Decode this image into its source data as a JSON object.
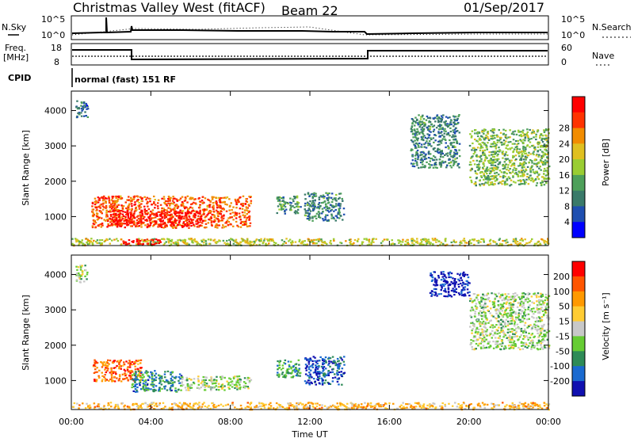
{
  "header": {
    "station": "Christmas Valley West (fitACF)",
    "beam": "Beam 22",
    "date": "01/Sep/2017"
  },
  "params": {
    "nsky_label": "N.Sky",
    "nsearch_label": "N.Search",
    "freq_label_1": "Freq.",
    "freq_label_2": "[MHz]",
    "nave_label": "Nave",
    "cpid_label": "CPID",
    "cpid_value": "normal (fast) 151 RF",
    "noise_ticks": [
      "10^5",
      "10^0"
    ],
    "freq_ticks": [
      "18",
      "8"
    ],
    "nave_ticks": [
      "60",
      "0"
    ]
  },
  "chart_data": [
    {
      "type": "heatmap",
      "title": "",
      "xlabel": "",
      "ylabel": "Slant Range [km]",
      "xlim": [
        0,
        24
      ],
      "ylim": [
        180,
        4550
      ],
      "xticks": [
        "00:00",
        "04:00",
        "08:00",
        "12:00",
        "16:00",
        "20:00",
        "00:00"
      ],
      "yticks": [
        1000,
        2000,
        3000,
        4000
      ],
      "colorbar": {
        "label": "Power [dB]",
        "ticks": [
          "4",
          "8",
          "12",
          "16",
          "20",
          "24",
          "28"
        ],
        "colors": [
          "#0000ff",
          "#1f4fb0",
          "#3a7a6a",
          "#4ea05a",
          "#9acd32",
          "#e0c020",
          "#f28c00",
          "#ff3300",
          "#ff0000"
        ]
      },
      "regions": [
        {
          "t": [
            0.2,
            0.8
          ],
          "r": [
            3800,
            4300
          ],
          "level": 0.25
        },
        {
          "t": [
            1.0,
            9.0
          ],
          "r": [
            700,
            1600
          ],
          "level": 0.8
        },
        {
          "t": [
            2.0,
            6.5
          ],
          "r": [
            750,
            1200
          ],
          "level": 0.95
        },
        {
          "t": [
            10.3,
            11.5
          ],
          "r": [
            1100,
            1600
          ],
          "level": 0.35
        },
        {
          "t": [
            11.7,
            13.7
          ],
          "r": [
            900,
            1700
          ],
          "level": 0.3
        },
        {
          "t": [
            17.0,
            19.5
          ],
          "r": [
            2400,
            3900
          ],
          "level": 0.3
        },
        {
          "t": [
            20.0,
            24.0
          ],
          "r": [
            1900,
            3500
          ],
          "level": 0.45
        },
        {
          "t": [
            0.0,
            24.0
          ],
          "r": [
            200,
            400
          ],
          "level": 0.55
        },
        {
          "t": [
            2.5,
            4.5
          ],
          "r": [
            220,
            380
          ],
          "level": 0.95
        }
      ]
    },
    {
      "type": "heatmap",
      "title": "",
      "xlabel": "Time UT",
      "ylabel": "Slant Range [km]",
      "xlim": [
        0,
        24
      ],
      "ylim": [
        180,
        4550
      ],
      "xticks": [
        "00:00",
        "04:00",
        "08:00",
        "12:00",
        "16:00",
        "20:00",
        "00:00"
      ],
      "yticks": [
        1000,
        2000,
        3000,
        4000
      ],
      "colorbar": {
        "label": "Velocity [m s⁻¹]",
        "ticks": [
          "200",
          "100",
          "50",
          "15",
          "-15",
          "-50",
          "-100",
          "-200"
        ],
        "colors": [
          "#1010b0",
          "#1a6ad0",
          "#2e8b57",
          "#66cc33",
          "#c8c8c8",
          "#ffcc33",
          "#ff9900",
          "#ff5500",
          "#ff0000"
        ]
      },
      "regions": [
        {
          "t": [
            0.2,
            0.8
          ],
          "r": [
            3800,
            4300
          ],
          "level": 0.45
        },
        {
          "t": [
            1.0,
            3.5
          ],
          "r": [
            1000,
            1600
          ],
          "level": 0.8
        },
        {
          "t": [
            3.0,
            5.5
          ],
          "r": [
            700,
            1300
          ],
          "level": 0.25
        },
        {
          "t": [
            5.5,
            9.0
          ],
          "r": [
            750,
            1150
          ],
          "level": 0.45
        },
        {
          "t": [
            10.3,
            11.5
          ],
          "r": [
            1100,
            1600
          ],
          "level": 0.3
        },
        {
          "t": [
            11.7,
            13.7
          ],
          "r": [
            900,
            1700
          ],
          "level": 0.15
        },
        {
          "t": [
            18.0,
            20.0
          ],
          "r": [
            3400,
            4100
          ],
          "level": 0.05
        },
        {
          "t": [
            20.0,
            24.0
          ],
          "r": [
            1900,
            3500
          ],
          "level": 0.45
        },
        {
          "t": [
            0.0,
            24.0
          ],
          "r": [
            200,
            400
          ],
          "level": 0.65
        }
      ]
    }
  ]
}
